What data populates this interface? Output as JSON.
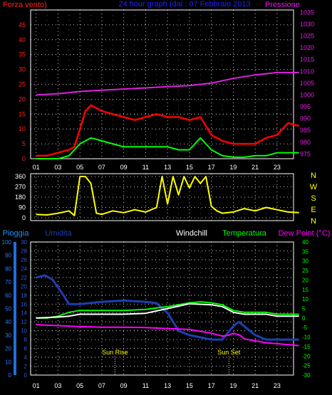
{
  "title": "24 hour graph (dal : 07 Febbraio 2013",
  "chart_data": [
    {
      "type": "line",
      "left_label": "Forza vento)",
      "right_label": "Pressione",
      "x_tick_labels": [
        "01",
        "03",
        "05",
        "07",
        "09",
        "11",
        "13",
        "15",
        "17",
        "19",
        "21",
        "23"
      ],
      "y_left_ticks": [
        0,
        5,
        10,
        15,
        20,
        25,
        30,
        35,
        40,
        45
      ],
      "y_left_range": [
        0,
        50
      ],
      "y_right_ticks": [
        975,
        980,
        985,
        990,
        995,
        1000,
        1005,
        1010,
        1015,
        1020,
        1025,
        1030,
        1035
      ],
      "y_right_range": [
        973,
        1036
      ],
      "series": [
        {
          "role": "wind_gust",
          "color": "#ff0000",
          "axis": "left",
          "points": [
            [
              0,
              1
            ],
            [
              1,
              1
            ],
            [
              2,
              2
            ],
            [
              3,
              3
            ],
            [
              3.5,
              4
            ],
            [
              4,
              10
            ],
            [
              4.5,
              16
            ],
            [
              5,
              18
            ],
            [
              5.5,
              17
            ],
            [
              6,
              16
            ],
            [
              7,
              15
            ],
            [
              8,
              14
            ],
            [
              9,
              13
            ],
            [
              10,
              14
            ],
            [
              11,
              15
            ],
            [
              12,
              14
            ],
            [
              13,
              14
            ],
            [
              14,
              13
            ],
            [
              15,
              14
            ],
            [
              16,
              8
            ],
            [
              17,
              6
            ],
            [
              18,
              5
            ],
            [
              19,
              5
            ],
            [
              20,
              5
            ],
            [
              21,
              7
            ],
            [
              22,
              8
            ],
            [
              23,
              12
            ],
            [
              24,
              11
            ]
          ]
        },
        {
          "role": "wind_avg",
          "color": "#00ff00",
          "axis": "left",
          "points": [
            [
              0,
              0
            ],
            [
              2,
              0
            ],
            [
              3,
              1
            ],
            [
              3.5,
              3
            ],
            [
              4,
              5
            ],
            [
              5,
              7
            ],
            [
              6,
              6
            ],
            [
              7,
              5
            ],
            [
              8,
              4
            ],
            [
              9,
              4
            ],
            [
              10,
              4
            ],
            [
              11,
              4
            ],
            [
              12,
              4
            ],
            [
              13,
              3
            ],
            [
              14,
              3
            ],
            [
              15,
              7
            ],
            [
              16,
              3
            ],
            [
              17,
              1
            ],
            [
              18,
              0.5
            ],
            [
              19,
              0.5
            ],
            [
              20,
              1
            ],
            [
              21,
              1
            ],
            [
              22,
              2
            ],
            [
              23,
              2
            ],
            [
              24,
              2
            ]
          ]
        },
        {
          "role": "pressure",
          "color": "#e020e0",
          "axis": "right",
          "points": [
            [
              0,
              1000
            ],
            [
              2,
              1000.5
            ],
            [
              4,
              1001.5
            ],
            [
              6,
              1002
            ],
            [
              8,
              1002.5
            ],
            [
              10,
              1003
            ],
            [
              12,
              1003.5
            ],
            [
              14,
              1004
            ],
            [
              16,
              1005
            ],
            [
              18,
              1007
            ],
            [
              20,
              1008.5
            ],
            [
              22,
              1009.5
            ],
            [
              24,
              1009.5
            ]
          ]
        }
      ]
    },
    {
      "type": "line",
      "y_left_ticks": [
        0,
        90,
        180,
        270,
        360
      ],
      "y_left_range": [
        0,
        360
      ],
      "y_right_ticks": [
        "N",
        "W",
        "S",
        "E",
        "N"
      ],
      "series": [
        {
          "role": "wind_direction",
          "color": "#ffff00",
          "points": [
            [
              0,
              30
            ],
            [
              1,
              25
            ],
            [
              2,
              40
            ],
            [
              3,
              60
            ],
            [
              3.5,
              20
            ],
            [
              4,
              360
            ],
            [
              4.5,
              360
            ],
            [
              5,
              300
            ],
            [
              5.5,
              40
            ],
            [
              6,
              30
            ],
            [
              7,
              60
            ],
            [
              8,
              45
            ],
            [
              9,
              70
            ],
            [
              10,
              50
            ],
            [
              11,
              90
            ],
            [
              11.5,
              360
            ],
            [
              12,
              120
            ],
            [
              12.5,
              360
            ],
            [
              13,
              200
            ],
            [
              13.5,
              360
            ],
            [
              14,
              260
            ],
            [
              14.5,
              360
            ],
            [
              15,
              300
            ],
            [
              15.5,
              360
            ],
            [
              16,
              100
            ],
            [
              16.5,
              60
            ],
            [
              17,
              40
            ],
            [
              18,
              50
            ],
            [
              19,
              80
            ],
            [
              20,
              60
            ],
            [
              21,
              90
            ],
            [
              22,
              70
            ],
            [
              23,
              50
            ],
            [
              24,
              45
            ]
          ]
        }
      ]
    },
    {
      "type": "line",
      "legend": [
        "Pioggia",
        "Umidita",
        "Windchill",
        "Temperatura",
        "Dew Point (°C)"
      ],
      "legend_colors": [
        "#1e90ff",
        "#1c3fb0",
        "#ffffff",
        "#00ff00",
        "#ff00ff"
      ],
      "y_rain_ticks": [
        0,
        10,
        20,
        30,
        40,
        50,
        60,
        70,
        80,
        90,
        100
      ],
      "y_hum_ticks": [
        0,
        2,
        4,
        6,
        8,
        10,
        12,
        14,
        16,
        18,
        20,
        22,
        24,
        26,
        28,
        30
      ],
      "y_right_ticks": [
        -30,
        -25,
        -20,
        -15,
        -10,
        -5,
        0,
        5,
        10,
        15,
        20,
        25,
        30,
        35,
        40
      ],
      "y_right_range": [
        -30,
        40
      ],
      "annotations": [
        {
          "text": "Sun Rise",
          "x": 7.2
        },
        {
          "text": "Sun Set",
          "x": 17.6
        }
      ],
      "series": [
        {
          "role": "humidity",
          "color": "#1c3fb0",
          "axis": "hum_scale",
          "points": [
            [
              0,
              22
            ],
            [
              0.8,
              22.5
            ],
            [
              1.5,
              21.5
            ],
            [
              2.5,
              18
            ],
            [
              3,
              16
            ],
            [
              4,
              16
            ],
            [
              6,
              16.5
            ],
            [
              8,
              16.8
            ],
            [
              10,
              16.5
            ],
            [
              11,
              16.2
            ],
            [
              12,
              14
            ],
            [
              13,
              10
            ],
            [
              14,
              9
            ],
            [
              16,
              8
            ],
            [
              17,
              8
            ],
            [
              18,
              11
            ],
            [
              18.5,
              12
            ],
            [
              19,
              11
            ],
            [
              20,
              9
            ],
            [
              21,
              8
            ],
            [
              22,
              8
            ],
            [
              23,
              8
            ],
            [
              24,
              8
            ]
          ]
        },
        {
          "role": "temperature",
          "color": "#00ff00",
          "axis": "right",
          "points": [
            [
              0,
              0
            ],
            [
              1,
              0
            ],
            [
              2,
              1
            ],
            [
              3,
              3
            ],
            [
              4,
              4
            ],
            [
              6,
              4
            ],
            [
              8,
              4
            ],
            [
              10,
              4.5
            ],
            [
              12,
              6
            ],
            [
              13,
              7
            ],
            [
              14,
              8
            ],
            [
              15,
              8.5
            ],
            [
              16,
              8
            ],
            [
              17,
              7
            ],
            [
              18,
              4
            ],
            [
              19,
              3
            ],
            [
              20,
              3
            ],
            [
              21,
              3
            ],
            [
              22,
              2
            ],
            [
              23,
              2
            ],
            [
              24,
              2
            ]
          ]
        },
        {
          "role": "windchill",
          "color": "#ffffff",
          "axis": "right",
          "points": [
            [
              0,
              0
            ],
            [
              2,
              0.5
            ],
            [
              3,
              1
            ],
            [
              4,
              2
            ],
            [
              6,
              2
            ],
            [
              8,
              2
            ],
            [
              10,
              2.5
            ],
            [
              12,
              5
            ],
            [
              14,
              7.5
            ],
            [
              16,
              7
            ],
            [
              17,
              6
            ],
            [
              18,
              3
            ],
            [
              19,
              2
            ],
            [
              21,
              2
            ],
            [
              22,
              1
            ],
            [
              24,
              1
            ]
          ]
        },
        {
          "role": "dew_point",
          "color": "#ff00ff",
          "axis": "right",
          "points": [
            [
              0,
              -3.5
            ],
            [
              2,
              -4
            ],
            [
              4,
              -4.5
            ],
            [
              6,
              -4.8
            ],
            [
              8,
              -4.8
            ],
            [
              10,
              -5
            ],
            [
              12,
              -5.5
            ],
            [
              14,
              -6
            ],
            [
              16,
              -8
            ],
            [
              17,
              -9.5
            ],
            [
              17.6,
              -9
            ],
            [
              18,
              -8
            ],
            [
              18.6,
              -9
            ],
            [
              19,
              -11
            ],
            [
              20,
              -12
            ],
            [
              21,
              -13
            ],
            [
              22,
              -13.5
            ],
            [
              23,
              -14
            ],
            [
              24,
              -14.5
            ]
          ]
        }
      ]
    }
  ]
}
